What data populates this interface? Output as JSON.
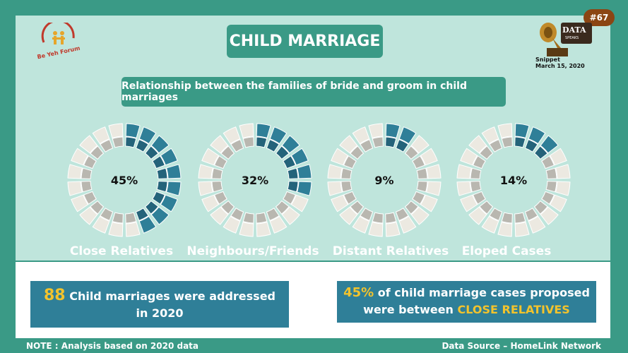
{
  "badge": "#67",
  "title": "CHILD MARRIAGE",
  "subtitle": "Relationship between the families of bride and groom in child marriages",
  "logo_left": "Be Yeh Forum",
  "logo_right": {
    "main": "DATA",
    "sub": "SPEAKS"
  },
  "snippet": {
    "line1": "Snippet",
    "line2": "March 15, 2020"
  },
  "chart_data": {
    "type": "pie",
    "categories": [
      "Close Relatives",
      "Neighbours/Friends",
      "Distant Relatives",
      "Eloped Cases"
    ],
    "values": [
      45,
      32,
      9,
      14
    ],
    "labels": [
      "45%",
      "32%",
      "9%",
      "14%"
    ],
    "colors": {
      "active_outer": "#2f7f98",
      "active_inner": "#24637a",
      "inactive_outer": "#ece9e1",
      "inactive_inner": "#b9b7b0"
    }
  },
  "stats": {
    "left": {
      "number": "88",
      "text_line1": "Child marriages were addressed",
      "text_line2": "in 2020"
    },
    "right": {
      "percent": "45%",
      "text_line1": "of child marriage cases proposed",
      "text_line2_prefix": "were between",
      "highlight": "CLOSE RELATIVES"
    }
  },
  "footer": {
    "note": "NOTE : Analysis based on 2020  data",
    "source": "Data Source – HomeLink Network"
  }
}
